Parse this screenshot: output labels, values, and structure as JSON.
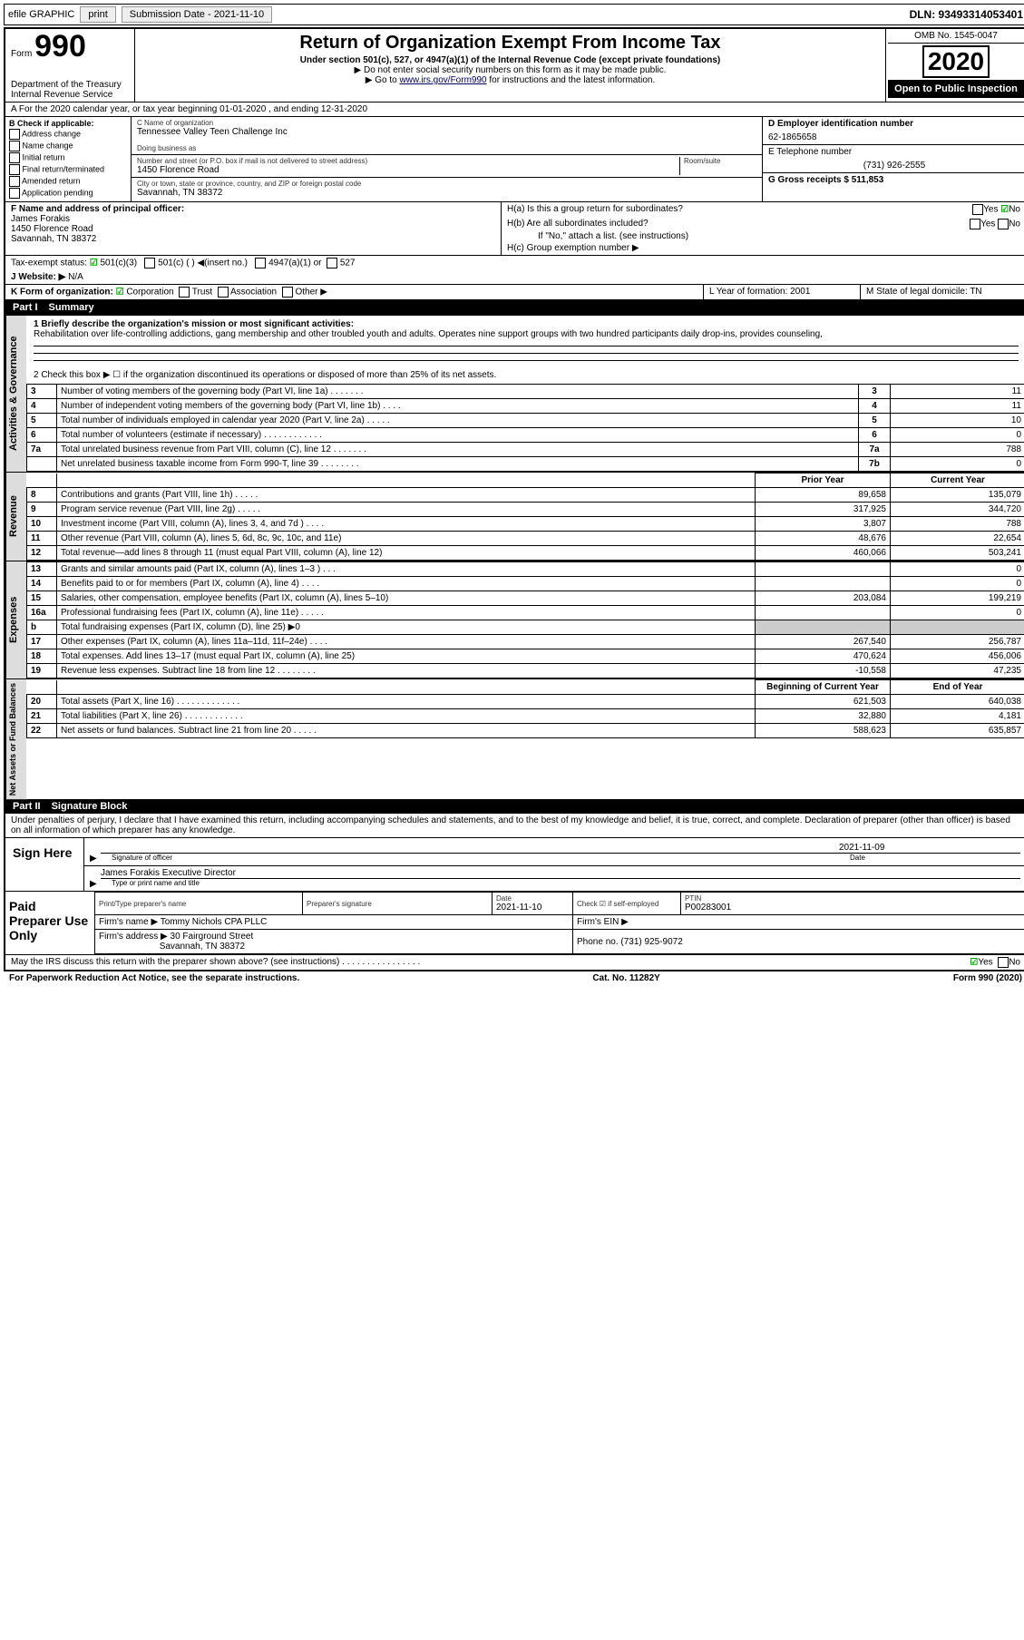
{
  "topbar": {
    "efile_label": "efile GRAPHIC",
    "print_btn": "print",
    "submission_label": "Submission Date - 2021-11-10",
    "dln_label": "DLN: 93493314053401"
  },
  "header": {
    "form_word": "Form",
    "form_no": "990",
    "dept": "Department of the Treasury\nInternal Revenue Service",
    "title": "Return of Organization Exempt From Income Tax",
    "sub1": "Under section 501(c), 527, or 4947(a)(1) of the Internal Revenue Code (except private foundations)",
    "sub2": "▶ Do not enter social security numbers on this form as it may be made public.",
    "sub3_pre": "▶ Go to ",
    "sub3_link": "www.irs.gov/Form990",
    "sub3_post": " for instructions and the latest information.",
    "omb": "OMB No. 1545-0047",
    "year": "2020",
    "public": "Open to Public Inspection"
  },
  "rowA": "A For the 2020 calendar year, or tax year beginning 01-01-2020   , and ending 12-31-2020",
  "boxB": {
    "title": "B Check if applicable:",
    "opts": [
      "Address change",
      "Name change",
      "Initial return",
      "Final return/terminated",
      "Amended return",
      "Application pending"
    ]
  },
  "boxC": {
    "name_label": "C Name of organization",
    "name": "Tennessee Valley Teen Challenge Inc",
    "dba_label": "Doing business as",
    "dba": "",
    "addr_label": "Number and street (or P.O. box if mail is not delivered to street address)",
    "room_label": "Room/suite",
    "addr": "1450 Florence Road",
    "city_label": "City or town, state or province, country, and ZIP or foreign postal code",
    "city": "Savannah, TN  38372"
  },
  "boxD": {
    "label": "D Employer identification number",
    "value": "62-1865658"
  },
  "boxE": {
    "label": "E Telephone number",
    "value": "(731) 926-2555"
  },
  "boxG": {
    "label": "G Gross receipts $ 511,853"
  },
  "boxF": {
    "label": "F  Name and address of principal officer:",
    "value": "James Forakis\n1450 Florence Road\nSavannah, TN  38372"
  },
  "boxH": {
    "ha": "H(a)  Is this a group return for subordinates?",
    "hb": "H(b)  Are all subordinates included?",
    "hb_note": "If \"No,\" attach a list. (see instructions)",
    "hc": "H(c)  Group exemption number ▶",
    "yes": "Yes",
    "no": "No"
  },
  "taxStatus": {
    "label": "Tax-exempt status:",
    "c3": "501(c)(3)",
    "c_blank": "501(c) (   ) ◀(insert no.)",
    "a1": "4947(a)(1) or",
    "s527": "527"
  },
  "rowJ": {
    "label": "J  Website: ▶",
    "value": "N/A"
  },
  "rowK": {
    "label": "K Form of organization:",
    "corp": "Corporation",
    "trust": "Trust",
    "assoc": "Association",
    "other": "Other ▶"
  },
  "rowL": {
    "label": "L Year of formation: 2001"
  },
  "rowM": {
    "label": "M State of legal domicile: TN"
  },
  "partI": {
    "title_part": "Part I",
    "title": "Summary",
    "line1_label": "1  Briefly describe the organization's mission or most significant activities:",
    "line1_text": "Rehabilitation over life-controlling addictions, gang membership and other troubled youth and adults. Operates nine support groups with two hundred participants daily drop-ins, provides counseling,",
    "line2": "2   Check this box ▶ ☐  if the organization discontinued its operations or disposed of more than 25% of its net assets.",
    "tabs": {
      "gov": "Activities & Governance",
      "rev": "Revenue",
      "exp": "Expenses",
      "net": "Net Assets or Fund Balances"
    },
    "col_prior": "Prior Year",
    "col_current": "Current Year",
    "col_begin": "Beginning of Current Year",
    "col_end": "End of Year",
    "gov_lines": [
      {
        "n": "3",
        "d": "Number of voting members of the governing body (Part VI, line 1a)  .   .   .   .   .   .   .",
        "b": "3",
        "v": "11"
      },
      {
        "n": "4",
        "d": "Number of independent voting members of the governing body (Part VI, line 1b)  .   .   .   .",
        "b": "4",
        "v": "11"
      },
      {
        "n": "5",
        "d": "Total number of individuals employed in calendar year 2020 (Part V, line 2a)  .   .   .   .   .",
        "b": "5",
        "v": "10"
      },
      {
        "n": "6",
        "d": "Total number of volunteers (estimate if necessary)   .   .   .   .   .   .   .   .   .   .   .   .",
        "b": "6",
        "v": "0"
      },
      {
        "n": "7a",
        "d": "Total unrelated business revenue from Part VIII, column (C), line 12  .   .   .   .   .   .   .",
        "b": "7a",
        "v": "788"
      },
      {
        "n": "",
        "d": "Net unrelated business taxable income from Form 990-T, line 39   .   .   .   .   .   .   .   .",
        "b": "7b",
        "v": "0"
      }
    ],
    "rev_lines": [
      {
        "n": "8",
        "d": "Contributions and grants (Part VIII, line 1h)   .   .   .   .   .",
        "p": "89,658",
        "c": "135,079"
      },
      {
        "n": "9",
        "d": "Program service revenue (Part VIII, line 2g)   .   .   .   .   .",
        "p": "317,925",
        "c": "344,720"
      },
      {
        "n": "10",
        "d": "Investment income (Part VIII, column (A), lines 3, 4, and 7d )   .   .   .   .",
        "p": "3,807",
        "c": "788"
      },
      {
        "n": "11",
        "d": "Other revenue (Part VIII, column (A), lines 5, 6d, 8c, 9c, 10c, and 11e)",
        "p": "48,676",
        "c": "22,654"
      },
      {
        "n": "12",
        "d": "Total revenue—add lines 8 through 11 (must equal Part VIII, column (A), line 12)",
        "p": "460,066",
        "c": "503,241"
      }
    ],
    "exp_lines": [
      {
        "n": "13",
        "d": "Grants and similar amounts paid (Part IX, column (A), lines 1–3 )  .   .   .",
        "p": "",
        "c": "0"
      },
      {
        "n": "14",
        "d": "Benefits paid to or for members (Part IX, column (A), line 4)  .   .   .   .",
        "p": "",
        "c": "0"
      },
      {
        "n": "15",
        "d": "Salaries, other compensation, employee benefits (Part IX, column (A), lines 5–10)",
        "p": "203,084",
        "c": "199,219"
      },
      {
        "n": "16a",
        "d": "Professional fundraising fees (Part IX, column (A), line 11e)  .   .   .   .   .",
        "p": "",
        "c": "0"
      },
      {
        "n": "b",
        "d": "Total fundraising expenses (Part IX, column (D), line 25) ▶0",
        "p": "shade",
        "c": "shade"
      },
      {
        "n": "17",
        "d": "Other expenses (Part IX, column (A), lines 11a–11d, 11f–24e)  .   .   .   .",
        "p": "267,540",
        "c": "256,787"
      },
      {
        "n": "18",
        "d": "Total expenses. Add lines 13–17 (must equal Part IX, column (A), line 25)",
        "p": "470,624",
        "c": "456,006"
      },
      {
        "n": "19",
        "d": "Revenue less expenses. Subtract line 18 from line 12 .   .   .   .   .   .   .   .",
        "p": "-10,558",
        "c": "47,235"
      }
    ],
    "net_lines": [
      {
        "n": "20",
        "d": "Total assets (Part X, line 16)  .   .   .   .   .   .   .   .   .   .   .   .   .",
        "p": "621,503",
        "c": "640,038"
      },
      {
        "n": "21",
        "d": "Total liabilities (Part X, line 26)  .   .   .   .   .   .   .   .   .   .   .   .",
        "p": "32,880",
        "c": "4,181"
      },
      {
        "n": "22",
        "d": "Net assets or fund balances. Subtract line 21 from line 20  .   .   .   .   .",
        "p": "588,623",
        "c": "635,857"
      }
    ]
  },
  "partII": {
    "title_part": "Part II",
    "title": "Signature Block",
    "decl": "Under penalties of perjury, I declare that I have examined this return, including accompanying schedules and statements, and to the best of my knowledge and belief, it is true, correct, and complete. Declaration of preparer (other than officer) is based on all information of which preparer has any knowledge.",
    "sign_here": "Sign Here",
    "sig_officer_label": "Signature of officer",
    "sig_date": "2021-11-09",
    "sig_date_label": "Date",
    "sig_name": "James Forakis  Executive Director",
    "sig_name_label": "Type or print name and title",
    "paid_label": "Paid Preparer Use Only",
    "prep_name_label": "Print/Type preparer's name",
    "prep_sig_label": "Preparer's signature",
    "prep_date_label": "Date",
    "prep_date": "2021-11-10",
    "prep_check_label": "Check ☑ if self-employed",
    "ptin_label": "PTIN",
    "ptin": "P00283001",
    "firm_name_label": "Firm's name     ▶",
    "firm_name": "Tommy Nichols CPA PLLC",
    "firm_ein_label": "Firm's EIN ▶",
    "firm_addr_label": "Firm's address ▶",
    "firm_addr1": "30 Fairground Street",
    "firm_addr2": "Savannah, TN  38372",
    "firm_phone_label": "Phone no. (731) 925-9072",
    "discuss": "May the IRS discuss this return with the preparer shown above? (see instructions)   .   .   .   .   .   .   .   .   .   .   .   .   .   .   .   .",
    "discuss_yes": "Yes",
    "discuss_no": "No"
  },
  "footer": {
    "left": "For Paperwork Reduction Act Notice, see the separate instructions.",
    "mid": "Cat. No. 11282Y",
    "right": "Form 990 (2020)"
  }
}
